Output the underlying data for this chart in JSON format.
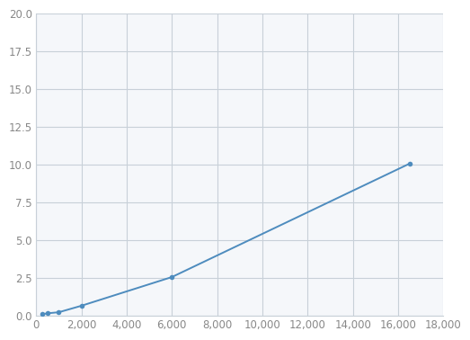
{
  "x": [
    250,
    500,
    1000,
    2000,
    6000,
    16500
  ],
  "y": [
    0.08,
    0.15,
    0.22,
    0.65,
    2.55,
    10.05
  ],
  "line_color": "#4e8cbe",
  "marker_color": "#4e8cbe",
  "marker_size": 4,
  "line_width": 1.4,
  "xlim": [
    0,
    18000
  ],
  "ylim": [
    0.0,
    20.0
  ],
  "xticks": [
    0,
    2000,
    4000,
    6000,
    8000,
    10000,
    12000,
    14000,
    16000,
    18000
  ],
  "yticks": [
    0.0,
    2.5,
    5.0,
    7.5,
    10.0,
    12.5,
    15.0,
    17.5,
    20.0
  ],
  "grid_color": "#c8d0d8",
  "background_color": "#ffffff",
  "plot_bg_color": "#f5f7fa",
  "tick_label_color": "#888888",
  "tick_fontsize": 8.5
}
